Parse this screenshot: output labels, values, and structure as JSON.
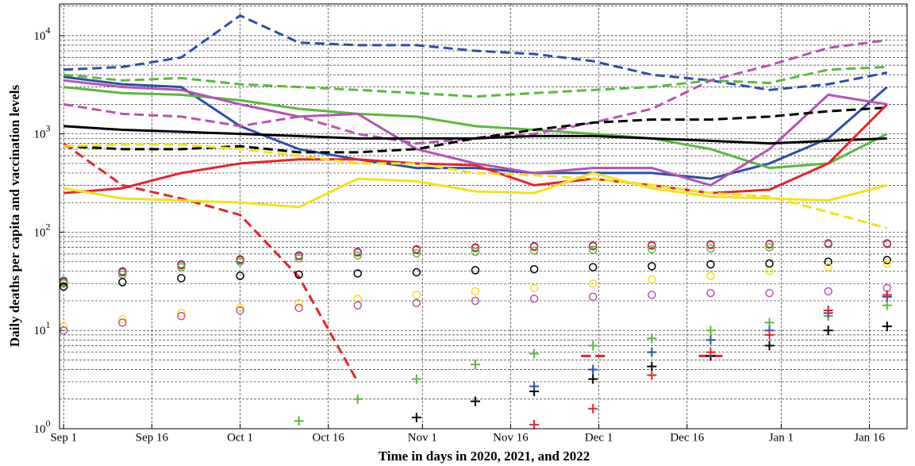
{
  "chart_data": {
    "type": "line",
    "x_label": "Time in days in 2020, 2021, and 2022",
    "y_label": "Daily deaths per capita and vaccination levels",
    "log_y": true,
    "grid": true,
    "xlim": [
      -0.7,
      143.4
    ],
    "ylim": [
      1,
      21000
    ],
    "xticks": [
      {
        "value": 0,
        "label": "Sep 1"
      },
      {
        "value": 15,
        "label": "Sep 16"
      },
      {
        "value": 30,
        "label": "Oct 1"
      },
      {
        "value": 45,
        "label": "Oct 16"
      },
      {
        "value": 61,
        "label": "Nov 1"
      },
      {
        "value": 76,
        "label": "Nov 16"
      },
      {
        "value": 91,
        "label": "Dec 1"
      },
      {
        "value": 106,
        "label": "Dec 16"
      },
      {
        "value": 122,
        "label": "Jan 1"
      },
      {
        "value": 137,
        "label": "Jan 16"
      }
    ],
    "yticks": [
      {
        "value": 1,
        "label": "10",
        "exponent": "0"
      },
      {
        "value": 10,
        "label": "10",
        "exponent": "1"
      },
      {
        "value": 100,
        "label": "10",
        "exponent": "2"
      },
      {
        "value": 1000,
        "label": "10",
        "exponent": "3"
      },
      {
        "value": 10000,
        "label": "10",
        "exponent": "4"
      }
    ],
    "yminor": [
      2,
      3,
      4,
      5,
      6,
      7,
      8,
      9,
      20,
      30,
      40,
      50,
      60,
      70,
      80,
      90,
      200,
      300,
      400,
      500,
      600,
      700,
      800,
      900,
      2000,
      3000,
      4000,
      5000,
      6000,
      7000,
      8000,
      9000,
      20000
    ],
    "x": [
      0,
      10,
      20,
      30,
      40,
      50,
      60,
      70,
      80,
      90,
      100,
      110,
      120,
      130,
      140
    ],
    "series": [
      {
        "color": "#2e4fa8",
        "style": "dashed",
        "values": [
          4500,
          4800,
          6000,
          16000,
          8500,
          8000,
          8000,
          7000,
          6500,
          5500,
          4000,
          3500,
          2800,
          3200,
          4200
        ]
      },
      {
        "color": "#2e4fa8",
        "style": "solid",
        "values": [
          3800,
          3200,
          3000,
          1200,
          700,
          550,
          450,
          450,
          400,
          400,
          400,
          350,
          500,
          900,
          3000
        ]
      },
      {
        "color": "#5cb83c",
        "style": "dashed",
        "values": [
          4000,
          3500,
          3700,
          3200,
          3000,
          2800,
          2600,
          2400,
          2600,
          2800,
          3000,
          3500,
          3300,
          4500,
          4800
        ]
      },
      {
        "color": "#5cb83c",
        "style": "solid",
        "values": [
          3000,
          2600,
          2500,
          2200,
          1800,
          1600,
          1500,
          1200,
          1100,
          1000,
          900,
          700,
          450,
          500,
          1000
        ]
      },
      {
        "color": "#b455b0",
        "style": "dashed",
        "values": [
          2000,
          1600,
          1500,
          1200,
          1500,
          1000,
          800,
          900,
          1000,
          1300,
          1800,
          3500,
          5000,
          7500,
          9000
        ]
      },
      {
        "color": "#b455b0",
        "style": "solid",
        "values": [
          3500,
          3000,
          2800,
          2000,
          1500,
          1600,
          700,
          500,
          400,
          450,
          450,
          300,
          700,
          2500,
          2000
        ]
      },
      {
        "color": "#000000",
        "style": "dashed",
        "values": [
          750,
          700,
          700,
          750,
          650,
          650,
          700,
          900,
          1100,
          1300,
          1400,
          1400,
          1500,
          1700,
          1850
        ]
      },
      {
        "color": "#000000",
        "style": "solid",
        "values": [
          1200,
          1100,
          1050,
          1000,
          950,
          900,
          900,
          900,
          950,
          950,
          900,
          850,
          800,
          850,
          900
        ]
      },
      {
        "color": "#e8232a",
        "style": "solid",
        "values": [
          250,
          280,
          400,
          500,
          550,
          550,
          500,
          480,
          300,
          350,
          300,
          250,
          270,
          500,
          2000
        ]
      },
      {
        "color": "#e8232a",
        "style": "dashed",
        "values": [
          800,
          300,
          220,
          150,
          35,
          3,
          null,
          null,
          null,
          5.5,
          null,
          5.5,
          null,
          null,
          null
        ]
      },
      {
        "color": "#f2e21a",
        "style": "dashed",
        "values": [
          750,
          780,
          780,
          700,
          600,
          500,
          500,
          400,
          380,
          350,
          300,
          250,
          230,
          160,
          110
        ]
      },
      {
        "color": "#f2e21a",
        "style": "solid",
        "values": [
          280,
          220,
          210,
          200,
          180,
          350,
          330,
          260,
          250,
          400,
          280,
          230,
          220,
          210,
          300
        ]
      },
      {
        "color": "#2e4fa8",
        "marker": "circle",
        "values": [
          32,
          40,
          47,
          53,
          58,
          63,
          67,
          70,
          72,
          73,
          74,
          75,
          76,
          77,
          77
        ]
      },
      {
        "color": "#e8232a",
        "marker": "circle",
        "values": [
          31,
          39,
          46,
          52,
          57,
          62,
          66,
          69,
          71,
          72,
          73,
          74,
          75,
          76,
          76
        ]
      },
      {
        "color": "#5cb83c",
        "marker": "circle",
        "values": [
          30,
          37,
          44,
          50,
          54,
          58,
          61,
          63,
          65,
          66,
          67,
          68,
          70,
          null,
          null
        ]
      },
      {
        "color": "#000000",
        "marker": "circle",
        "values": [
          28,
          31,
          34,
          36,
          37,
          38,
          39,
          41,
          42,
          44,
          45,
          47,
          48,
          50,
          52
        ]
      },
      {
        "color": "#f2e21a",
        "marker": "circle",
        "values": [
          11,
          13,
          15,
          17,
          19,
          21,
          23,
          25,
          27,
          30,
          33,
          36,
          40,
          44,
          48
        ]
      },
      {
        "color": "#b455b0",
        "marker": "circle",
        "values": [
          10,
          12,
          14,
          16,
          17,
          18,
          19,
          20,
          21,
          22,
          23,
          24,
          24,
          25,
          27
        ]
      },
      {
        "color": "#5cb83c",
        "marker": "plus",
        "values": [
          null,
          null,
          null,
          null,
          1.2,
          2,
          3.2,
          4.5,
          5.8,
          7,
          8.3,
          10,
          12,
          14,
          18
        ]
      },
      {
        "color": "#000000",
        "marker": "plus",
        "values": [
          null,
          null,
          null,
          null,
          null,
          null,
          1.3,
          1.9,
          2.4,
          3.2,
          4.3,
          5.5,
          7,
          10,
          11
        ]
      },
      {
        "color": "#2e4fa8",
        "marker": "plus",
        "values": [
          null,
          null,
          null,
          null,
          null,
          null,
          null,
          null,
          2.7,
          4,
          6,
          8,
          10,
          15,
          22
        ]
      },
      {
        "color": "#e8232a",
        "marker": "plus",
        "values": [
          null,
          null,
          null,
          null,
          null,
          null,
          null,
          null,
          1.1,
          1.6,
          3.5,
          6,
          9,
          16,
          23
        ]
      }
    ]
  }
}
